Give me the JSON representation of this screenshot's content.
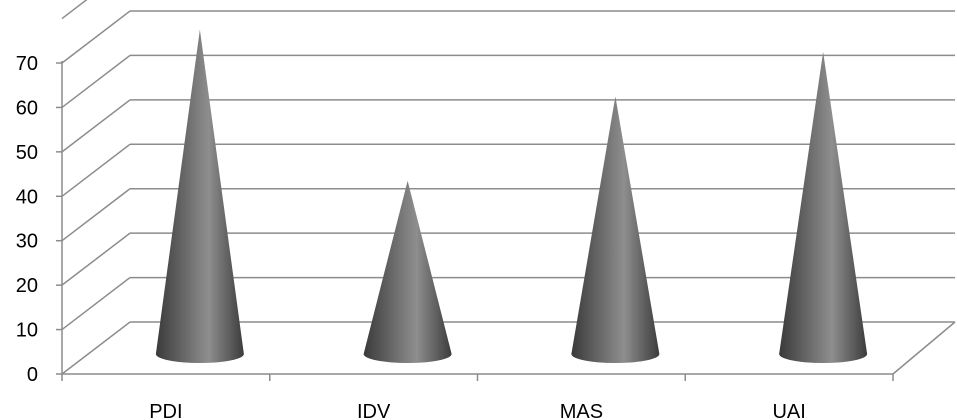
{
  "chart_data": {
    "type": "bar",
    "subtype": "3d-cone",
    "categories": [
      "PDI",
      "IDV",
      "MAS",
      "UAI"
    ],
    "values": [
      73,
      39,
      58,
      68
    ],
    "ylim": [
      0,
      70
    ],
    "yticks": [
      0,
      10,
      20,
      30,
      40,
      50,
      60,
      70
    ],
    "grid": true,
    "legend": "none",
    "title": "",
    "xlabel": "",
    "ylabel": "",
    "colors": {
      "cone_dark": "#3a3a3a",
      "cone_light": "#9a9a9a",
      "gridline": "#8c8c8c",
      "axis": "#8c8c8c"
    }
  }
}
